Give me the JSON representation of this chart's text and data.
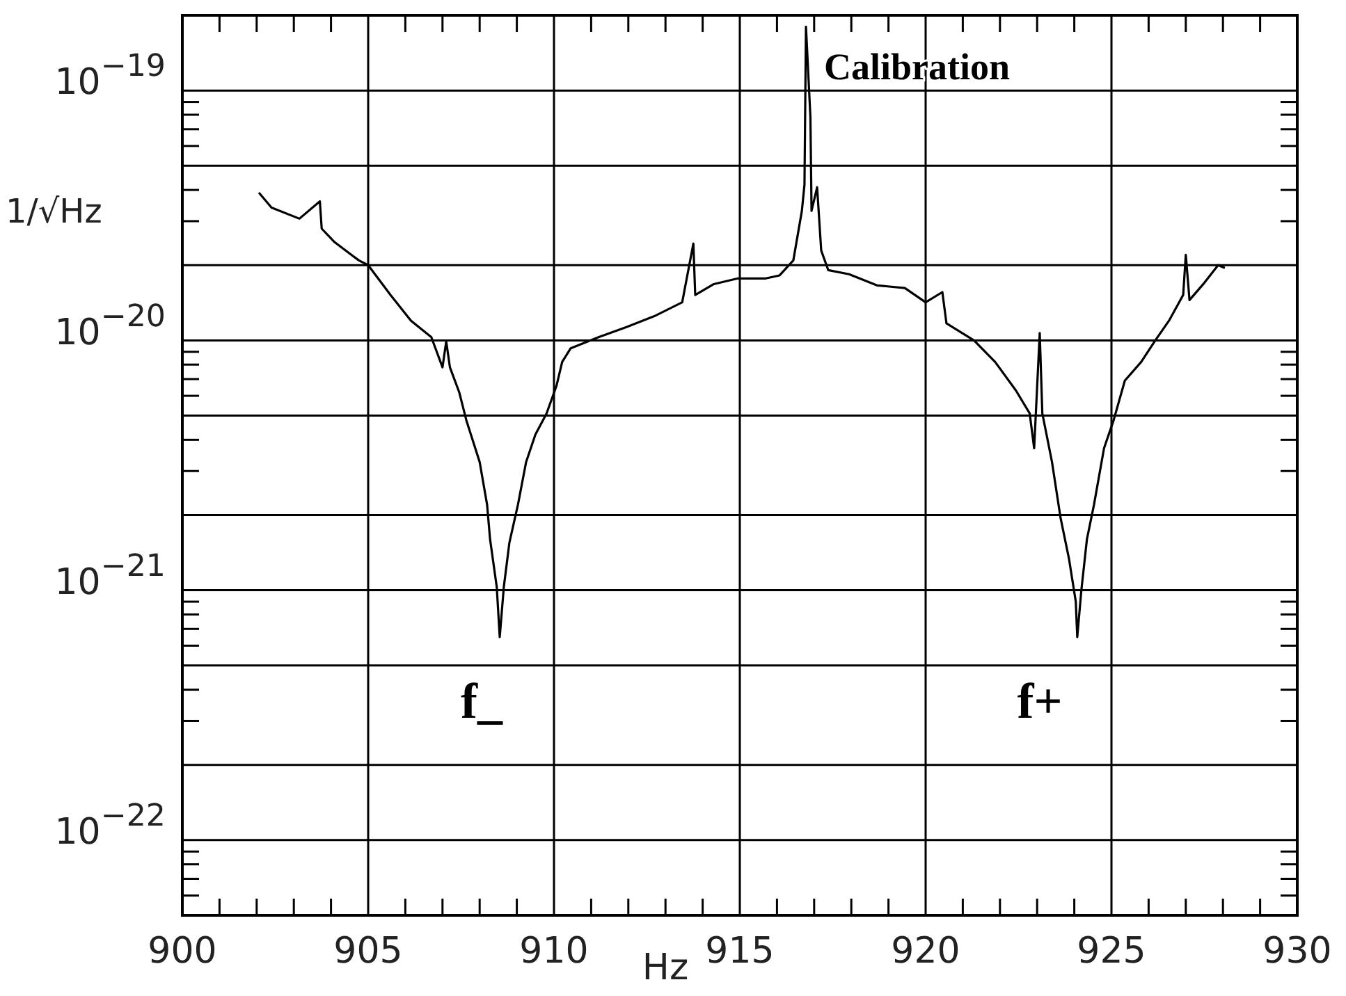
{
  "chart_data": {
    "type": "line",
    "xlabel": "Hz",
    "ylabel": "1/√Hz",
    "log": "y",
    "grid": true,
    "marker": "none",
    "line_style": "solid",
    "xlim": [
      900,
      930
    ],
    "xticks": [
      900,
      905,
      910,
      915,
      920,
      925,
      930
    ],
    "ylim": [
      5e-23,
      2e-19
    ],
    "yticks": [
      {
        "value": 1e-22,
        "label": "10$^{−22}$"
      },
      {
        "value": 2e-22,
        "label": null
      },
      {
        "value": 5e-22,
        "label": null
      },
      {
        "value": 1e-21,
        "label": "10$^{−21}$"
      },
      {
        "value": 2e-21,
        "label": null
      },
      {
        "value": 5e-21,
        "label": null
      },
      {
        "value": 1e-20,
        "label": "10$^{−20}$"
      },
      {
        "value": 2e-20,
        "label": null
      },
      {
        "value": 5e-20,
        "label": null
      },
      {
        "value": 1e-19,
        "label": "10$^{−19}$"
      }
    ],
    "annotations": [
      "Calibration",
      "f_",
      "f+"
    ],
    "series": [
      {
        "color": "#000000",
        "x": [
          902.06,
          902.4,
          903.15,
          903.7,
          903.75,
          904.1,
          904.75,
          905,
          905.6,
          906.15,
          906.7,
          907.0,
          907.1,
          907.2,
          907.45,
          907.64,
          908.0,
          908.2,
          908.28,
          908.46,
          908.54,
          908.65,
          908.8,
          909.03,
          909.25,
          909.5,
          909.8,
          910.07,
          910.22,
          910.45,
          911.2,
          911.95,
          912.7,
          913.45,
          913.75,
          913.8,
          914.3,
          914.95,
          915.7,
          916.07,
          916.44,
          916.67,
          916.74,
          916.78,
          916.9,
          916.93,
          917.08,
          917.19,
          917.38,
          917.94,
          918.69,
          919.44,
          920,
          920.45,
          920.56,
          921.3,
          921.87,
          922.43,
          922.8,
          922.92,
          923.07,
          923.14,
          923.4,
          923.63,
          923.86,
          924.04,
          924.08,
          924.19,
          924.34,
          924.53,
          924.8,
          925.06,
          925.36,
          925.8,
          926.18,
          926.55,
          926.93,
          927.0,
          927.1,
          927.5,
          927.87,
          928.05
        ],
        "values": [
          3.9e-20,
          3.4e-20,
          3.07e-20,
          3.6e-20,
          2.8e-20,
          2.47e-20,
          2.09e-20,
          2e-20,
          1.52e-20,
          1.2e-20,
          1.03e-20,
          7.8e-21,
          9.9e-21,
          7.8e-21,
          6.2e-21,
          4.8e-21,
          3.26e-21,
          2.2e-21,
          1.6e-21,
          1.03e-21,
          6.5e-22,
          1.03e-21,
          1.55e-21,
          2.2e-21,
          3.26e-21,
          4.2e-21,
          5.1e-21,
          6.6e-21,
          8.2e-21,
          9.3e-21,
          1.03e-20,
          1.13e-20,
          1.25e-20,
          1.42e-20,
          2.44e-20,
          1.52e-20,
          1.68e-20,
          1.77e-20,
          1.77e-20,
          1.82e-20,
          2.09e-20,
          3.3e-20,
          4.2e-20,
          1.8e-19,
          7.8e-20,
          3.3e-20,
          4.1e-20,
          2.29e-20,
          1.91e-20,
          1.84e-20,
          1.66e-20,
          1.62e-20,
          1.42e-20,
          1.56e-20,
          1.17e-20,
          1e-20,
          8.2e-21,
          6.3e-21,
          5.1e-21,
          3.7e-21,
          1.07e-20,
          5.1e-21,
          3.26e-21,
          1.95e-21,
          1.33e-21,
          9e-22,
          6.5e-22,
          1e-21,
          1.6e-21,
          2.2e-21,
          3.7e-21,
          4.8e-21,
          6.9e-21,
          8.2e-21,
          1e-20,
          1.2e-20,
          1.52e-20,
          2.2e-20,
          1.45e-20,
          1.7e-20,
          2e-20,
          1.95e-20
        ]
      }
    ]
  }
}
